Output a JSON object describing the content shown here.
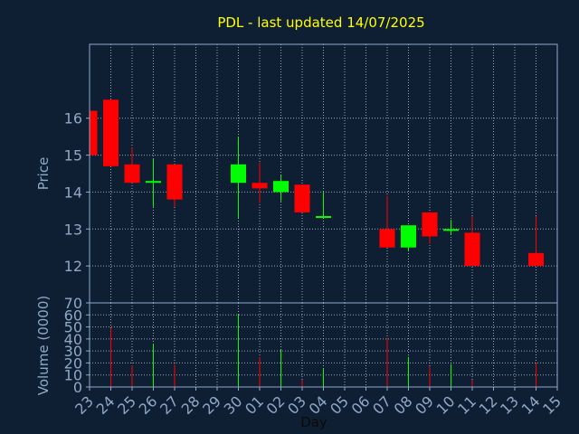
{
  "colors": {
    "background": "#0f1f33",
    "panel": "#0f1f33",
    "axis": "#8fa8c8",
    "grid": "#c0c8d8",
    "title": "#ffff00",
    "label": "#8fa8c8",
    "up": "#00ff00",
    "down": "#ff0000"
  },
  "chart_data": {
    "type": "candlestick",
    "title": "PDL - last updated 14/07/2025",
    "xlabel": "Day",
    "ylabel_price": "Price",
    "ylabel_volume": "Volume (0000)",
    "x_ticks": [
      "23",
      "24",
      "25",
      "26",
      "27",
      "28",
      "29",
      "30",
      "01",
      "02",
      "03",
      "04",
      "05",
      "06",
      "07",
      "08",
      "09",
      "10",
      "11",
      "12",
      "13",
      "14",
      "15"
    ],
    "price_ylim": [
      11,
      18
    ],
    "price_ticks": [
      12,
      13,
      14,
      15,
      16
    ],
    "volume_ylim": [
      0,
      70
    ],
    "volume_ticks": [
      0,
      10,
      20,
      30,
      40,
      50,
      60,
      70
    ],
    "candles": [
      {
        "x": 23,
        "open": 16.2,
        "close": 15.0,
        "high": 16.2,
        "low": 15.0
      },
      {
        "x": 24,
        "open": 16.5,
        "close": 14.7,
        "high": 16.5,
        "low": 14.7
      },
      {
        "x": 25,
        "open": 14.75,
        "close": 14.25,
        "high": 15.2,
        "low": 14.25
      },
      {
        "x": 26,
        "open": 14.25,
        "close": 14.3,
        "high": 14.9,
        "low": 13.6
      },
      {
        "x": 27,
        "open": 14.75,
        "close": 13.8,
        "high": 14.75,
        "low": 13.6
      },
      {
        "x": 30,
        "open": 14.25,
        "close": 14.75,
        "high": 15.5,
        "low": 13.3
      },
      {
        "x": 31,
        "open": 14.25,
        "close": 14.1,
        "high": 14.8,
        "low": 13.7
      },
      {
        "x": 32,
        "open": 14.0,
        "close": 14.3,
        "high": 14.45,
        "low": 13.75
      },
      {
        "x": 33,
        "open": 14.2,
        "close": 13.45,
        "high": 14.2,
        "low": 13.45
      },
      {
        "x": 34,
        "open": 13.3,
        "close": 13.35,
        "high": 14.0,
        "low": 13.3
      },
      {
        "x": 37,
        "open": 13.0,
        "close": 12.5,
        "high": 13.9,
        "low": 12.5
      },
      {
        "x": 38,
        "open": 12.5,
        "close": 13.1,
        "high": 13.1,
        "low": 12.4
      },
      {
        "x": 39,
        "open": 13.45,
        "close": 12.8,
        "high": 13.45,
        "low": 12.6
      },
      {
        "x": 40,
        "open": 12.95,
        "close": 13.0,
        "high": 13.25,
        "low": 12.85
      },
      {
        "x": 41,
        "open": 12.9,
        "close": 12.0,
        "high": 13.35,
        "low": 12.0
      },
      {
        "x": 44,
        "open": 12.35,
        "close": 12.0,
        "high": 13.35,
        "low": 12.0
      }
    ],
    "volume": [
      {
        "x": 24,
        "value": 49,
        "dir": "down"
      },
      {
        "x": 25,
        "value": 18,
        "dir": "down"
      },
      {
        "x": 26,
        "value": 36,
        "dir": "up"
      },
      {
        "x": 27,
        "value": 19,
        "dir": "down"
      },
      {
        "x": 30,
        "value": 61,
        "dir": "up"
      },
      {
        "x": 31,
        "value": 25,
        "dir": "down"
      },
      {
        "x": 32,
        "value": 31,
        "dir": "up"
      },
      {
        "x": 33,
        "value": 6,
        "dir": "down"
      },
      {
        "x": 34,
        "value": 15,
        "dir": "up"
      },
      {
        "x": 37,
        "value": 41,
        "dir": "down"
      },
      {
        "x": 38,
        "value": 25,
        "dir": "up"
      },
      {
        "x": 39,
        "value": 17,
        "dir": "down"
      },
      {
        "x": 40,
        "value": 19,
        "dir": "up"
      },
      {
        "x": 41,
        "value": 6,
        "dir": "down"
      },
      {
        "x": 44,
        "value": 20,
        "dir": "down"
      }
    ]
  }
}
